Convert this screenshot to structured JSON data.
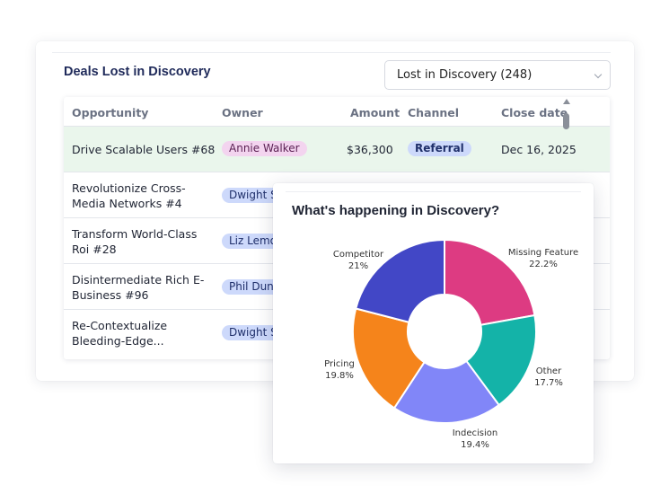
{
  "deals_card": {
    "title": "Deals Lost in Discovery",
    "filter_value": "Lost in Discovery (248)"
  },
  "table": {
    "columns": [
      "Opportunity",
      "Owner",
      "Amount",
      "Channel",
      "Close date"
    ],
    "rows": [
      {
        "opportunity": "Drive Scalable Users #68",
        "owner": "Annie Walker",
        "amount": "$36,300",
        "channel": "Referral",
        "close_date": "Dec 16, 2025",
        "highlight": true
      },
      {
        "opportunity_l1": "Revolutionize Cross-",
        "opportunity_l2": "Media Networks #4",
        "owner": "Dwight S"
      },
      {
        "opportunity_l1": "Transform World-Class",
        "opportunity_l2": "Roi #28",
        "owner": "Liz Lemo"
      },
      {
        "opportunity_l1": "Disintermediate Rich E-",
        "opportunity_l2": "Business #96",
        "owner": "Phil Dun"
      },
      {
        "opportunity_l1": "Re-Contextualize",
        "opportunity_l2": "Bleeding-Edge...",
        "owner": "Dwight S"
      }
    ]
  },
  "discovery_card": {
    "title": "What's happening in Discovery?"
  },
  "chart_data": {
    "type": "pie",
    "title": "What's happening in Discovery?",
    "donut": true,
    "slices": [
      {
        "label": "Missing Feature",
        "value": 22.2,
        "value_label": "22.2%",
        "color": "#dd3b82"
      },
      {
        "label": "Other",
        "value": 17.7,
        "value_label": "17.7%",
        "color": "#14b3a8"
      },
      {
        "label": "Indecision",
        "value": 19.4,
        "value_label": "19.4%",
        "color": "#8186f8"
      },
      {
        "label": "Pricing",
        "value": 19.8,
        "value_label": "19.8%",
        "color": "#f5841b"
      },
      {
        "label": "Competitor",
        "value": 21,
        "value_label": "21%",
        "color": "#4247c6"
      }
    ]
  }
}
